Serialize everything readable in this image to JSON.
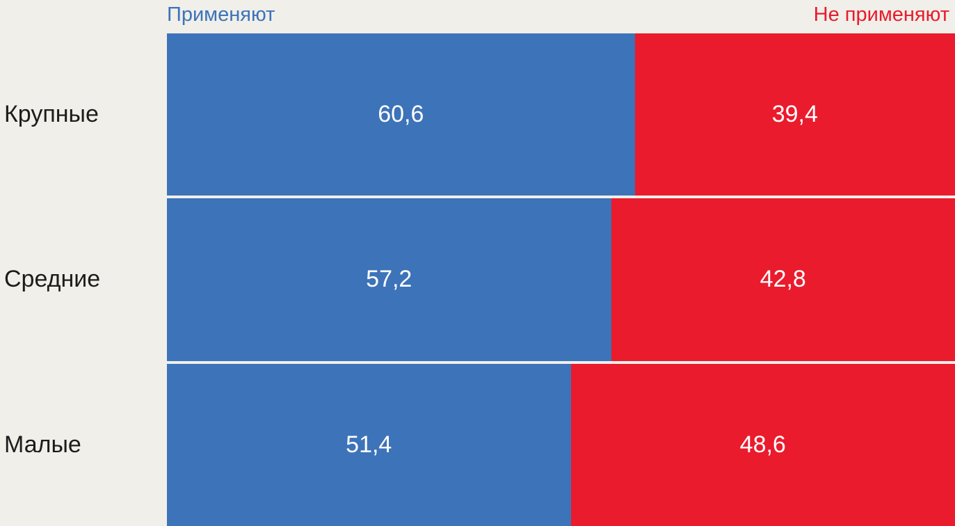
{
  "chart_data": {
    "type": "bar",
    "orientation": "horizontal",
    "stacked": true,
    "title": "",
    "categories": [
      "Крупные",
      "Средние",
      "Малые"
    ],
    "series": [
      {
        "name": "Применяют",
        "color": "#3d73b8",
        "values": [
          60.6,
          57.2,
          51.4
        ],
        "labels": [
          "60,6",
          "57,2",
          "51,4"
        ]
      },
      {
        "name": "Не применяют",
        "color": "#ea1b2c",
        "values": [
          39.4,
          42.8,
          48.6
        ],
        "labels": [
          "39,4",
          "42,8",
          "48,6"
        ]
      }
    ],
    "xlim": [
      0,
      100
    ],
    "legend_position": "top",
    "grid": false,
    "value_label_color": "#ffffff",
    "background_color": "#f0efea"
  }
}
